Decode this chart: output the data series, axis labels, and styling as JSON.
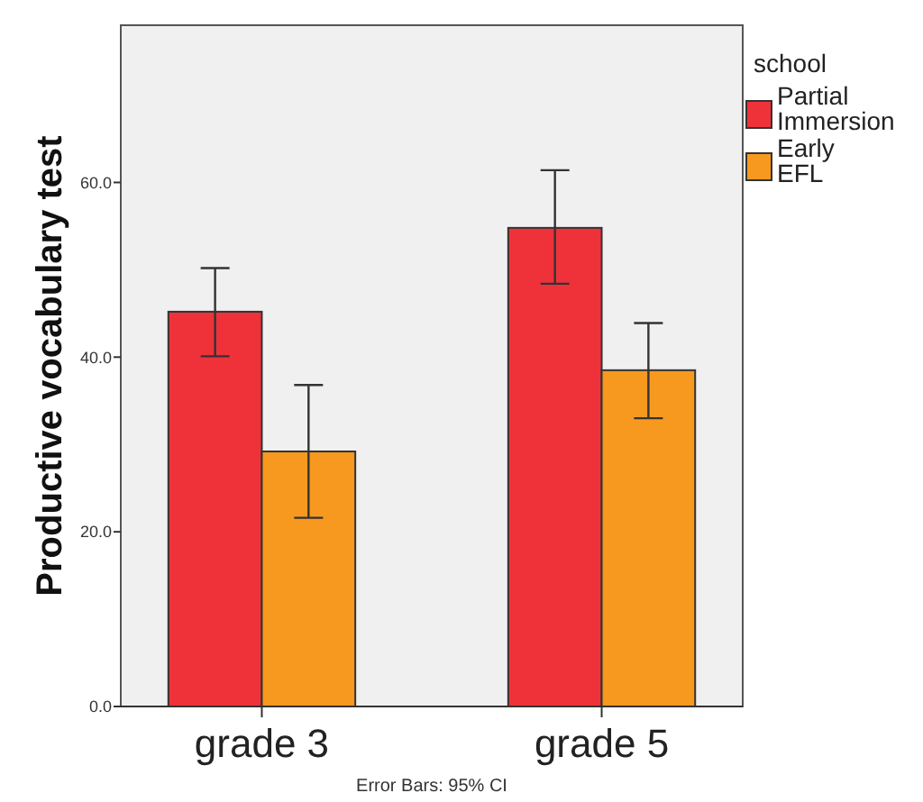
{
  "chart_data": {
    "type": "bar",
    "ylabel": "Productive vocabulary test",
    "legend_title": "school",
    "categories": [
      "grade 3",
      "grade 5"
    ],
    "series": [
      {
        "name": "Partial Immersion",
        "color": "#ef323a",
        "values": [
          45.2,
          54.8
        ],
        "errors": [
          [
            40.1,
            50.2
          ],
          [
            48.4,
            61.4
          ]
        ]
      },
      {
        "name": "Early EFL",
        "color": "#f7991e",
        "values": [
          29.2,
          38.5
        ],
        "errors": [
          [
            21.6,
            36.8
          ],
          [
            33.0,
            43.9
          ]
        ]
      }
    ],
    "ylim": [
      0,
      78
    ],
    "yticks": [
      {
        "value": 0,
        "label": "0.0"
      },
      {
        "value": 20,
        "label": "20.0"
      },
      {
        "value": 40,
        "label": "40.0"
      },
      {
        "value": 60,
        "label": "60.0"
      }
    ],
    "legend": "top right",
    "annotations": [
      "Error Bars: 95% CI"
    ]
  }
}
